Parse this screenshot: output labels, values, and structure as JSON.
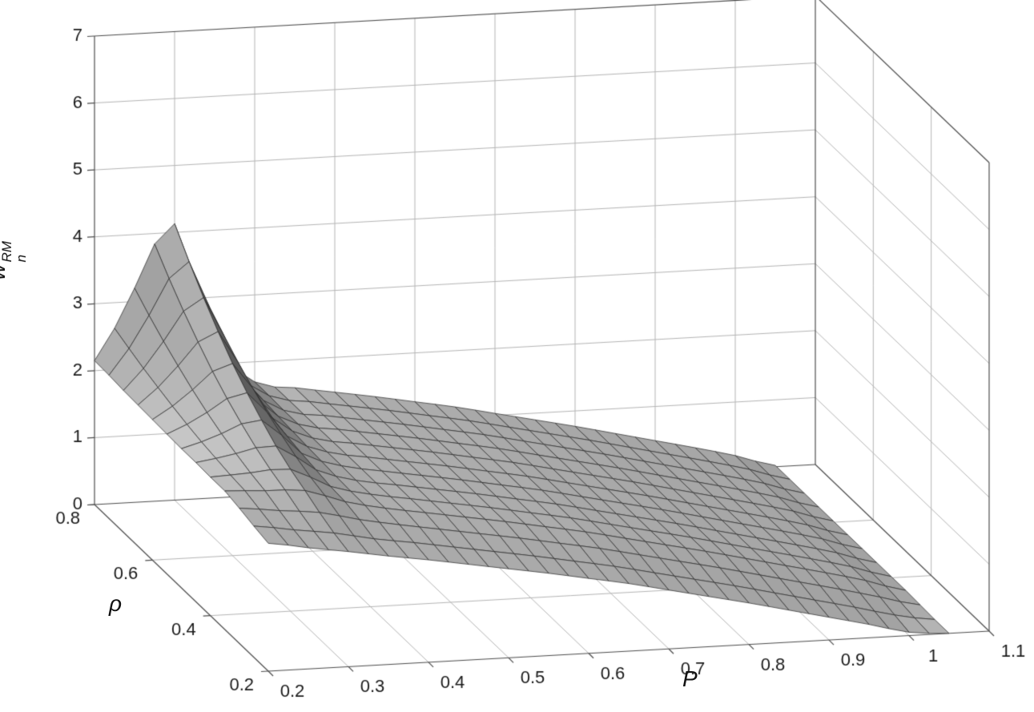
{
  "figure": {
    "background": "#ffffff"
  },
  "chart_data": {
    "type": "surface",
    "title": "",
    "xlabel": "P",
    "ylabel": "ρ",
    "zlabel_base": "w",
    "zlabel_sup": "RM",
    "zlabel_sub": "n",
    "grid": true,
    "legend": null,
    "x_range": [
      0.2,
      1.1
    ],
    "y_range": [
      0.2,
      0.8
    ],
    "z_range": [
      0,
      7
    ],
    "x_ticks": [
      0.2,
      0.3,
      0.4,
      0.5,
      0.6,
      0.7,
      0.8,
      0.9,
      1,
      1.1
    ],
    "x_tick_labels": [
      "0.2",
      "0.3",
      "0.4",
      "0.5",
      "0.6",
      "0.7",
      "0.8",
      "0.9",
      "1",
      "1.1"
    ],
    "y_ticks": [
      0.2,
      0.4,
      0.6,
      0.8
    ],
    "y_tick_labels": [
      "0.2",
      "0.4",
      "0.6",
      "0.8"
    ],
    "z_ticks": [
      0,
      1,
      2,
      3,
      4,
      5,
      6,
      7
    ],
    "z_tick_labels": [
      "0",
      "1",
      "2",
      "3",
      "4",
      "5",
      "6",
      "7"
    ],
    "x": [
      0.2,
      0.25,
      0.3,
      0.35,
      0.4,
      0.45,
      0.5,
      0.55,
      0.6,
      0.65,
      0.7,
      0.75,
      0.8,
      0.85,
      0.9,
      0.95,
      1.0,
      1.05
    ],
    "y": [
      0.2,
      0.25,
      0.3,
      0.35,
      0.4,
      0.45,
      0.5,
      0.55,
      0.6,
      0.65,
      0.7,
      0.75,
      0.8
    ],
    "z": [
      [
        1.91,
        1.81,
        1.72,
        1.62,
        1.53,
        1.43,
        1.33,
        1.23,
        1.12,
        1.01,
        0.88,
        0.75,
        0.62,
        0.48,
        0.34,
        0.2,
        0.05,
        0.0
      ],
      [
        1.96,
        1.87,
        1.79,
        1.67,
        1.58,
        1.48,
        1.38,
        1.28,
        1.17,
        1.06,
        0.93,
        0.8,
        0.67,
        0.53,
        0.39,
        0.25,
        0.1,
        0.0
      ],
      [
        2.02,
        1.95,
        1.89,
        1.75,
        1.64,
        1.54,
        1.44,
        1.34,
        1.23,
        1.12,
        0.99,
        0.86,
        0.73,
        0.59,
        0.45,
        0.31,
        0.16,
        0.01
      ],
      [
        2.07,
        2.04,
        2.01,
        1.81,
        1.68,
        1.58,
        1.48,
        1.38,
        1.27,
        1.16,
        1.03,
        0.9,
        0.77,
        0.63,
        0.49,
        0.35,
        0.2,
        0.02
      ],
      [
        2.07,
        2.1,
        2.12,
        1.83,
        1.68,
        1.58,
        1.48,
        1.38,
        1.27,
        1.16,
        1.03,
        0.9,
        0.77,
        0.63,
        0.49,
        0.35,
        0.2,
        0.02
      ],
      [
        2.08,
        2.18,
        2.26,
        1.87,
        1.68,
        1.58,
        1.48,
        1.38,
        1.27,
        1.16,
        1.03,
        0.9,
        0.77,
        0.63,
        0.49,
        0.35,
        0.2,
        0.02
      ],
      [
        2.08,
        2.27,
        2.44,
        1.91,
        1.69,
        1.58,
        1.48,
        1.38,
        1.27,
        1.16,
        1.03,
        0.9,
        0.77,
        0.63,
        0.49,
        0.35,
        0.2,
        0.02
      ],
      [
        2.09,
        2.38,
        2.64,
        1.96,
        1.69,
        1.58,
        1.48,
        1.38,
        1.27,
        1.16,
        1.03,
        0.9,
        0.77,
        0.63,
        0.49,
        0.35,
        0.2,
        0.02
      ],
      [
        2.1,
        2.51,
        2.87,
        2.02,
        1.69,
        1.58,
        1.48,
        1.38,
        1.27,
        1.16,
        1.03,
        0.9,
        0.77,
        0.63,
        0.49,
        0.35,
        0.2,
        0.02
      ],
      [
        2.11,
        2.66,
        3.14,
        2.08,
        1.69,
        1.58,
        1.48,
        1.38,
        1.27,
        1.16,
        1.03,
        0.9,
        0.77,
        0.63,
        0.49,
        0.35,
        0.2,
        0.02
      ],
      [
        2.12,
        2.82,
        3.44,
        2.16,
        1.69,
        1.58,
        1.48,
        1.38,
        1.27,
        1.16,
        1.03,
        0.9,
        0.77,
        0.63,
        0.49,
        0.35,
        0.2,
        0.02
      ],
      [
        2.14,
        3.0,
        3.77,
        2.24,
        1.7,
        1.58,
        1.48,
        1.38,
        1.27,
        1.16,
        1.03,
        0.9,
        0.77,
        0.63,
        0.49,
        0.35,
        0.2,
        0.02
      ],
      [
        2.15,
        3.2,
        4.13,
        2.33,
        1.7,
        1.58,
        1.48,
        1.38,
        1.27,
        1.16,
        1.03,
        0.9,
        0.77,
        0.63,
        0.49,
        0.35,
        0.2,
        0.02
      ]
    ],
    "colors": {
      "surface_base": "#b8b6b4",
      "mesh": "#2e2e2e",
      "grid": "#b5b5b5",
      "axis": "#4d4d4d",
      "tick_text": "#1a1a1a",
      "background": "#ffffff"
    }
  }
}
